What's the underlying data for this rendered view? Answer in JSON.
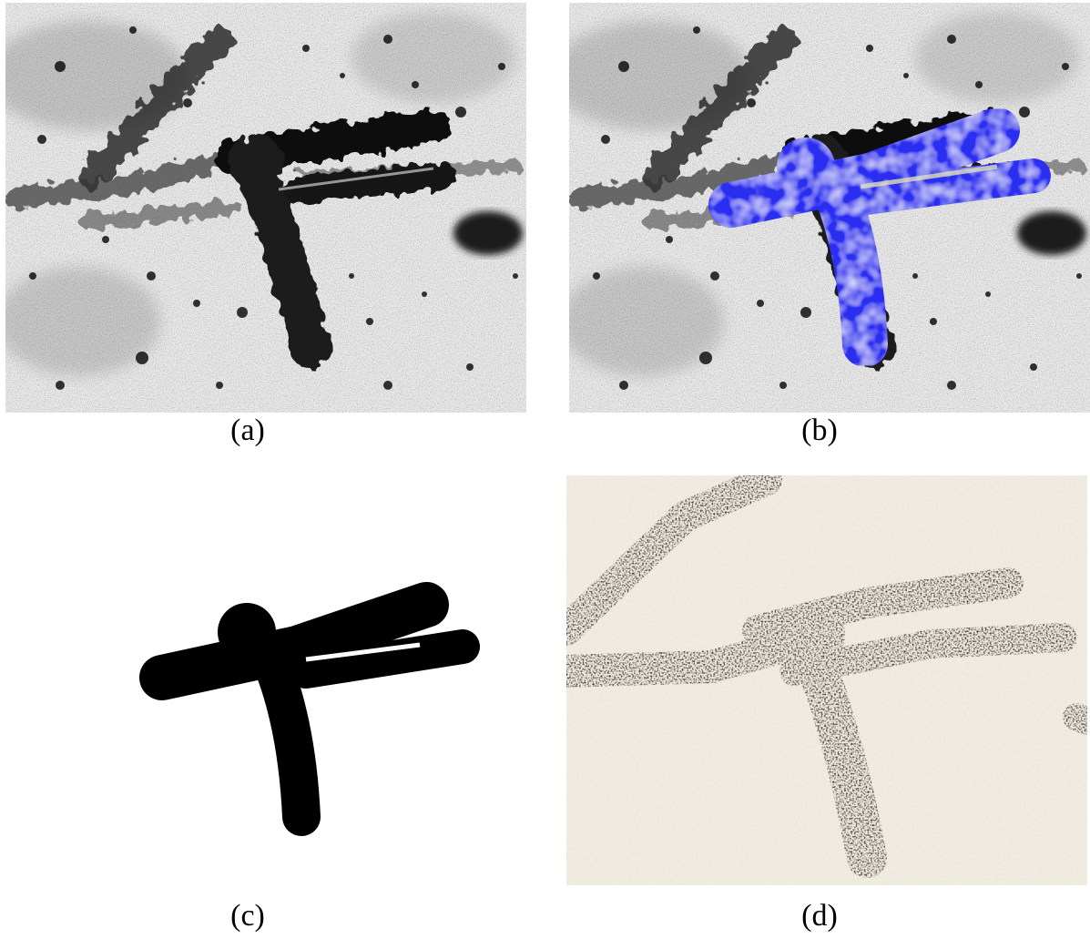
{
  "figure": {
    "captions": {
      "a": "(a)",
      "b": "(b)",
      "c": "(c)",
      "d": "(d)"
    },
    "colors": {
      "stone_base": "#b4b4b4",
      "stroke_dark": "#141414",
      "mask_overlay": "#2a2ef0",
      "mask_fill": "#000000",
      "paper": "#f3efe4",
      "ink": "#1a1710"
    }
  }
}
